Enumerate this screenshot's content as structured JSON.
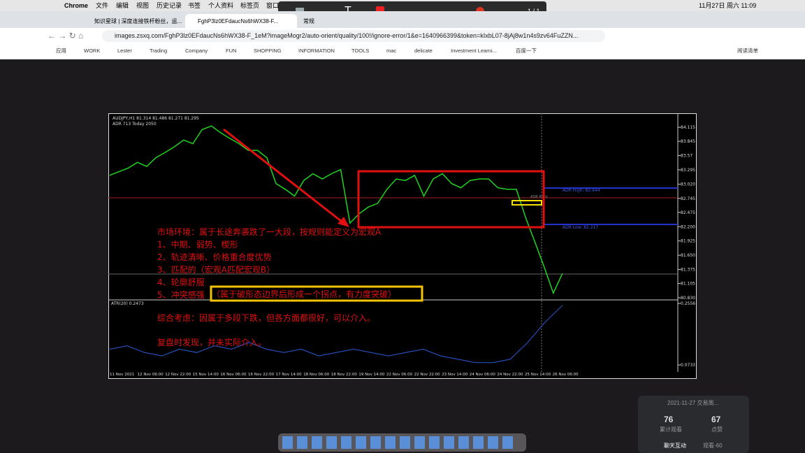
{
  "menubar": {
    "app": "Chrome",
    "items": [
      "文件",
      "编辑",
      "视图",
      "历史记录",
      "书签",
      "个人资料",
      "标签页",
      "窗口"
    ],
    "clock": "11月27日 周六 11:09"
  },
  "annotation_toolbar": {
    "page": "1 / 1"
  },
  "tabs": [
    "知识星球 | 深度连接铁杆粉丝，运...",
    "FghP3lz0EFdaucNs6hWX38-F...",
    "常规"
  ],
  "address": "images.zsxq.com/FghP3lz0EFdaucNs6hWX38-F_1eM?imageMogr2/auto-orient/quality/100!/ignore-error/1&e=1640966399&token=kIxbL07-8jAj8w1n4s9zv64FuZZN...",
  "bookmarks": [
    "应用",
    "WORK",
    "Lester",
    "Trading",
    "Company",
    "FUN",
    "SHOPPING",
    "INFORMATION",
    "TOOLS",
    "mac",
    "delicate",
    "Investment Learni...",
    "百度一下"
  ],
  "reading_list": "阅读清单",
  "chart": {
    "header": "AUDJPY,H1  81.314 81.486 81.271 81.295",
    "adr": "ADR 713  Today 2050",
    "adr_high": "ADR High: 82.944",
    "adr_low": "ADR Low: 82.217",
    "adr_point": "ADR Point",
    "ylim": [
      80.803,
      84.345
    ],
    "yticks": [
      84.115,
      83.845,
      83.57,
      83.295,
      {
        "value": 83.02,
        "label": "83.020"
      },
      82.745,
      82.475,
      {
        "value": 82.2,
        "label": "82.200"
      },
      81.925,
      {
        "value": 81.65,
        "label": "81.650"
      },
      81.375,
      81.105,
      {
        "value": 80.83,
        "label": "80.830"
      }
    ],
    "values": [
      83.19,
      83.26,
      83.33,
      83.44,
      83.36,
      83.53,
      83.63,
      83.74,
      83.87,
      83.8,
      84.07,
      84.14,
      84.01,
      83.9,
      83.8,
      83.67,
      83.67,
      83.53,
      83.03,
      82.92,
      82.79,
      83.09,
      83.22,
      83.12,
      83.22,
      83.3,
      82.27,
      82.45,
      82.58,
      82.65,
      82.92,
      83.12,
      83.09,
      83.19,
      82.79,
      83.12,
      83.22,
      83.03,
      82.95,
      83.09,
      83.12,
      83.12,
      82.95,
      82.92,
      82.92,
      82.38,
      81.91,
      81.43,
      80.92,
      81.3
    ],
    "atr_label": "ATR(20) 0.2473",
    "atr_ylim": [
      0.0609,
      0.2618
    ],
    "atr_yticks": [
      0.2556,
      0.0733
    ],
    "atr_values": [
      0.12,
      0.13,
      0.11,
      0.1,
      0.12,
      0.11,
      0.13,
      0.12,
      0.14,
      0.12,
      0.11,
      0.12,
      0.1,
      0.11,
      0.12,
      0.11,
      0.1,
      0.11,
      0.12,
      0.1,
      0.09,
      0.08,
      0.08,
      0.09,
      0.14,
      0.2,
      0.25
    ],
    "times": [
      "11 Nov 2021",
      "12 Nov 06:00",
      "12 Nov 22:00",
      "15 Nov 14:00",
      "16 Nov 06:00",
      "16 Nov 22:00",
      "17 Nov 14:00",
      "18 Nov 06:00",
      "18 Nov 22:00",
      "19 Nov 14:00",
      "22 Nov 06:00",
      "22 Nov 22:00",
      "23 Nov 14:00",
      "24 Nov 06:00",
      "24 Nov 22:00",
      "25 Nov 14:00",
      "26 Nov 06:00"
    ],
    "notes": [
      "市场环境：属于长途奔袭跌了一大段，按规则能定义为宏观A",
      "1、中期、弱势、楔形",
      "2、轨迹清晰、价格重合度优势",
      "3、匹配的（宏观A匹配宏观B）",
      "4、轮廓舒服",
      "5、冲突感强"
    ],
    "boxed_note": "（属于破形态边界后形成一个拐点，有力度突破）",
    "summary": [
      "综合考虑：因属于多段下跌，但各方面都很好，可以介入。",
      "复盘时发现，并未实际介入。"
    ]
  },
  "live_panel": {
    "title": "2021-11-27 交易周...",
    "views": "76",
    "views_label": "累计观看",
    "likes": "67",
    "likes_label": "点赞",
    "chat": "聊天互动",
    "watching": "观看·60"
  }
}
